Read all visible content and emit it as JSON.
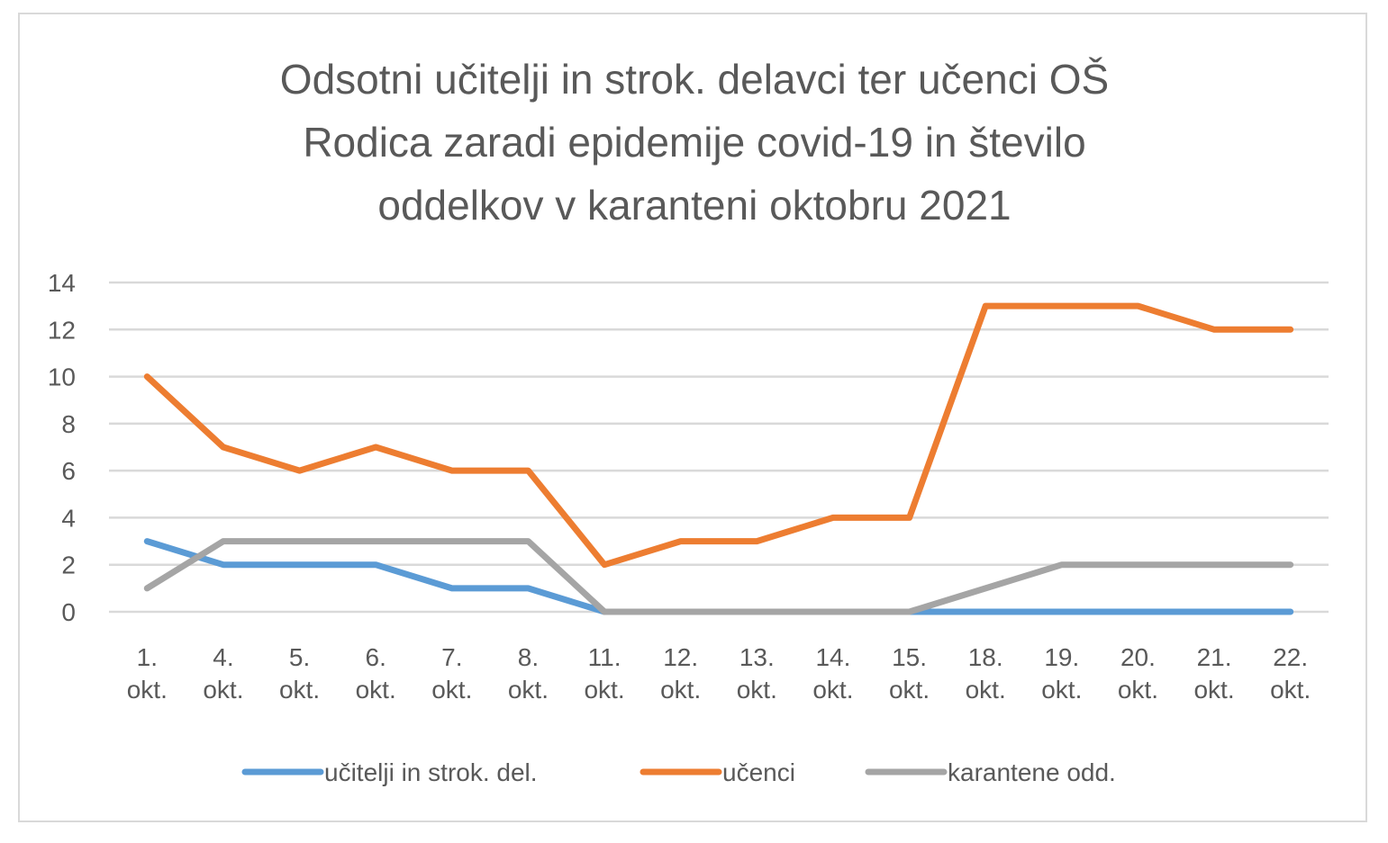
{
  "chart_data": {
    "type": "line",
    "title_lines": [
      "Odsotni učitelji in strok. delavci ter učenci OŠ",
      "Rodica zaradi epidemije covid-19 in število",
      "oddelkov v karanteni oktobru 2021"
    ],
    "categories": [
      [
        "1.",
        "okt."
      ],
      [
        "4.",
        "okt."
      ],
      [
        "5.",
        "okt."
      ],
      [
        "6.",
        "okt."
      ],
      [
        "7.",
        "okt."
      ],
      [
        "8.",
        "okt."
      ],
      [
        "11.",
        "okt."
      ],
      [
        "12.",
        "okt."
      ],
      [
        "13.",
        "okt."
      ],
      [
        "14.",
        "okt."
      ],
      [
        "15.",
        "okt."
      ],
      [
        "18.",
        "okt."
      ],
      [
        "19.",
        "okt."
      ],
      [
        "20.",
        "okt."
      ],
      [
        "21.",
        "okt."
      ],
      [
        "22.",
        "okt."
      ]
    ],
    "series": [
      {
        "name": "učitelji in strok. del.",
        "color": "#5b9bd5",
        "values": [
          3,
          2,
          2,
          2,
          1,
          1,
          0,
          0,
          0,
          0,
          0,
          0,
          0,
          0,
          0,
          0
        ]
      },
      {
        "name": "učenci",
        "color": "#ed7d31",
        "values": [
          10,
          7,
          6,
          7,
          6,
          6,
          2,
          3,
          3,
          4,
          4,
          13,
          13,
          13,
          12,
          12
        ]
      },
      {
        "name": "karantene odd.",
        "color": "#a5a5a5",
        "values": [
          1,
          3,
          3,
          3,
          3,
          3,
          0,
          0,
          0,
          0,
          0,
          1,
          2,
          2,
          2,
          2
        ]
      }
    ],
    "ylim": [
      0,
      14
    ],
    "yticks": [
      "0",
      "2",
      "4",
      "6",
      "8",
      "10",
      "12",
      "14"
    ],
    "grid": true,
    "legend_position": "bottom"
  }
}
